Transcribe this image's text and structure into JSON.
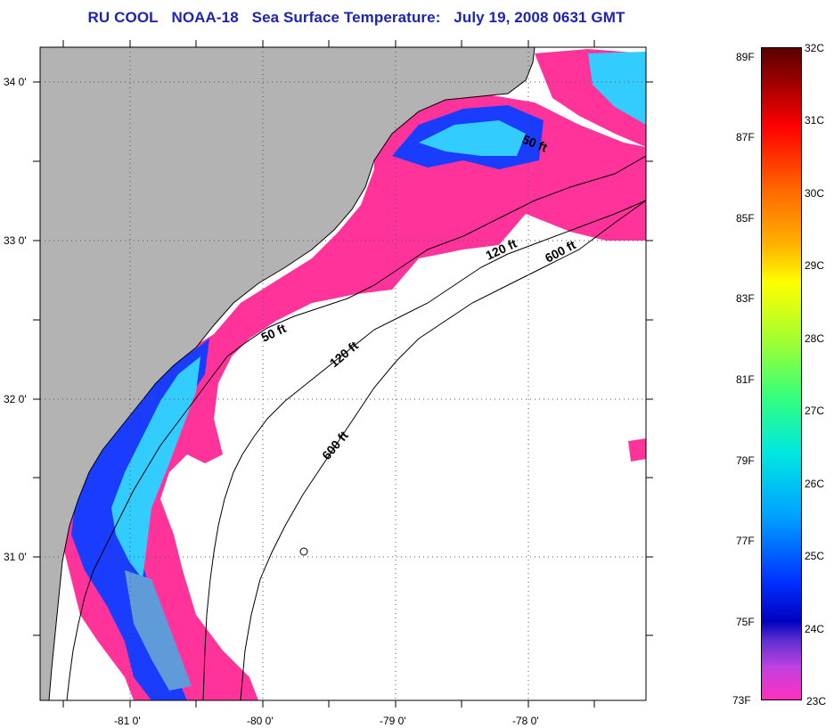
{
  "title": {
    "org": "RU COOL",
    "satellite": "NOAA-18",
    "product": "Sea Surface Temperature:",
    "datetime": "July 19, 2008 0631 GMT"
  },
  "map": {
    "lat_labels": [
      "34 0'",
      "33 0'",
      "32 0'",
      "31 0'"
    ],
    "lon_labels": [
      "-81 0'",
      "-80 0'",
      "-79 0'",
      "-78 0'"
    ],
    "isobaths": [
      {
        "label": "50 ft"
      },
      {
        "label": "50 ft"
      },
      {
        "label": "120 ft"
      },
      {
        "label": "120 ft"
      },
      {
        "label": "600 ft"
      },
      {
        "label": "600 ft"
      }
    ],
    "colors": {
      "land": "#b3b3b3",
      "cloud": "#ffffff",
      "warm_pink": "#ff3399",
      "cool_blue": "#1a3cff",
      "cyan": "#33ccff",
      "frame": "#000000"
    }
  },
  "colorbar": {
    "fahrenheit": [
      "89F",
      "87F",
      "85F",
      "83F",
      "81F",
      "79F",
      "77F",
      "75F",
      "73F"
    ],
    "celsius": [
      "32C",
      "31C",
      "30C",
      "29C",
      "28C",
      "27C",
      "26C",
      "25C",
      "24C",
      "23C"
    ]
  }
}
